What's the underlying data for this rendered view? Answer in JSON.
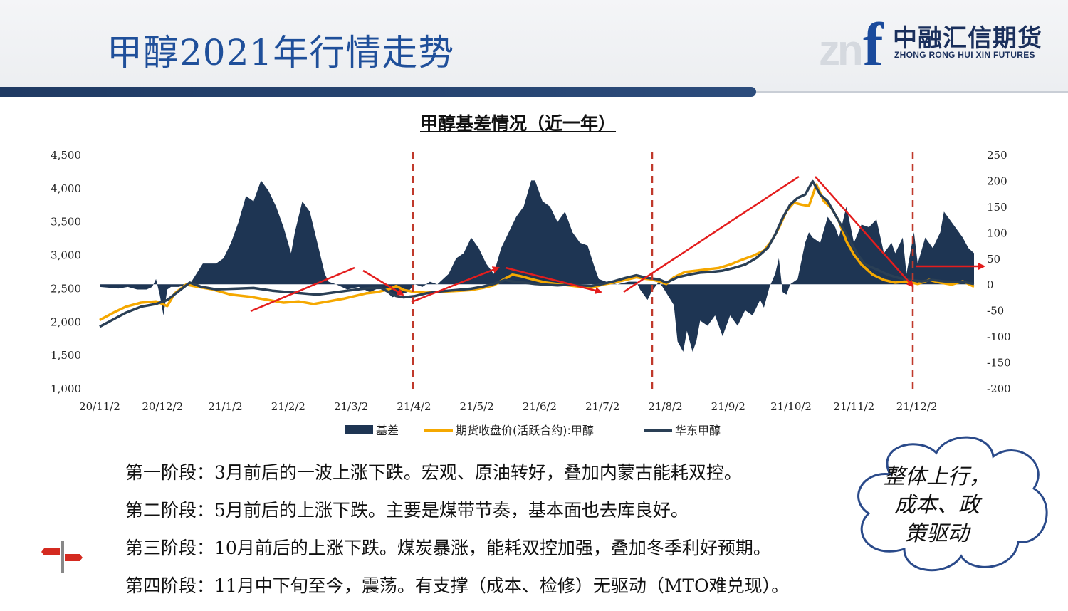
{
  "header": {
    "title": "甲醇2021年行情走势",
    "logo_cn": "中融汇信期货",
    "logo_en": "ZHONG RONG HUI XIN FUTURES",
    "logo_mark": "znf"
  },
  "chart_data": {
    "type": "area",
    "title": "甲醇基差情况（近一年）",
    "x_ticks": [
      "20/11/2",
      "20/12/2",
      "21/1/2",
      "21/2/2",
      "21/3/2",
      "21/4/2",
      "21/5/2",
      "21/6/2",
      "21/7/2",
      "21/8/2",
      "21/9/2",
      "21/10/2",
      "21/11/2",
      "21/12/2"
    ],
    "y_left": {
      "range": [
        1000,
        4500
      ],
      "ticks": [
        "1,000",
        "1,500",
        "2,000",
        "2,500",
        "3,000",
        "3,500",
        "4,000",
        "4,500"
      ]
    },
    "y_right": {
      "range": [
        -200,
        250
      ],
      "ticks": [
        "-200",
        "-150",
        "-100",
        "-50",
        "0",
        "50",
        "100",
        "150",
        "200",
        "250"
      ]
    },
    "legend": [
      {
        "name": "基差",
        "color": "#1e3553",
        "kind": "area"
      },
      {
        "name": "期货收盘价(活跃合约):甲醇",
        "color": "#f5a800",
        "kind": "line"
      },
      {
        "name": "华东甲醇",
        "color": "#2a3f55",
        "kind": "line"
      }
    ],
    "legend_position": "bottom",
    "series": [
      {
        "name": "基差",
        "axis": "right",
        "points": [
          [
            0,
            -5
          ],
          [
            10,
            -8
          ],
          [
            15,
            -5
          ],
          [
            20,
            -10
          ],
          [
            25,
            -10
          ],
          [
            28,
            -5
          ],
          [
            30,
            10
          ],
          [
            32,
            -20
          ],
          [
            34,
            -60
          ],
          [
            36,
            -10
          ],
          [
            38,
            -5
          ],
          [
            42,
            -5
          ],
          [
            48,
            0
          ],
          [
            55,
            40
          ],
          [
            62,
            40
          ],
          [
            66,
            50
          ],
          [
            70,
            80
          ],
          [
            74,
            120
          ],
          [
            78,
            170
          ],
          [
            82,
            160
          ],
          [
            86,
            200
          ],
          [
            90,
            180
          ],
          [
            94,
            150
          ],
          [
            98,
            110
          ],
          [
            102,
            60
          ],
          [
            104,
            100
          ],
          [
            108,
            160
          ],
          [
            112,
            140
          ],
          [
            116,
            80
          ],
          [
            120,
            20
          ],
          [
            122,
            5
          ],
          [
            126,
            0
          ],
          [
            132,
            -10
          ],
          [
            138,
            -5
          ],
          [
            144,
            -15
          ],
          [
            150,
            -5
          ],
          [
            156,
            -25
          ],
          [
            160,
            -20
          ],
          [
            164,
            -15
          ],
          [
            168,
            0
          ],
          [
            172,
            -5
          ],
          [
            176,
            5
          ],
          [
            180,
            0
          ],
          [
            186,
            20
          ],
          [
            190,
            50
          ],
          [
            194,
            60
          ],
          [
            198,
            90
          ],
          [
            202,
            70
          ],
          [
            206,
            40
          ],
          [
            210,
            20
          ],
          [
            214,
            70
          ],
          [
            218,
            100
          ],
          [
            222,
            130
          ],
          [
            226,
            150
          ],
          [
            228,
            175
          ],
          [
            230,
            200
          ],
          [
            232,
            200
          ],
          [
            236,
            160
          ],
          [
            240,
            150
          ],
          [
            244,
            120
          ],
          [
            248,
            140
          ],
          [
            252,
            100
          ],
          [
            256,
            80
          ],
          [
            260,
            75
          ],
          [
            264,
            30
          ],
          [
            266,
            10
          ],
          [
            270,
            5
          ],
          [
            276,
            0
          ],
          [
            282,
            5
          ],
          [
            286,
            5
          ],
          [
            288,
            -10
          ],
          [
            292,
            -30
          ],
          [
            294,
            -15
          ],
          [
            298,
            5
          ],
          [
            300,
            -5
          ],
          [
            306,
            -40
          ],
          [
            308,
            -110
          ],
          [
            311,
            -130
          ],
          [
            313,
            -90
          ],
          [
            316,
            -130
          ],
          [
            318,
            -110
          ],
          [
            320,
            -70
          ],
          [
            324,
            -80
          ],
          [
            328,
            -60
          ],
          [
            332,
            -100
          ],
          [
            336,
            -60
          ],
          [
            340,
            -80
          ],
          [
            344,
            -50
          ],
          [
            348,
            -60
          ],
          [
            352,
            -30
          ],
          [
            354,
            -45
          ],
          [
            357,
            -5
          ],
          [
            360,
            20
          ],
          [
            362,
            50
          ],
          [
            364,
            -15
          ],
          [
            366,
            -20
          ],
          [
            368,
            0
          ],
          [
            372,
            10
          ],
          [
            376,
            80
          ],
          [
            378,
            100
          ],
          [
            380,
            90
          ],
          [
            384,
            80
          ],
          [
            388,
            130
          ],
          [
            392,
            110
          ],
          [
            394,
            90
          ],
          [
            398,
            150
          ],
          [
            402,
            80
          ],
          [
            406,
            115
          ],
          [
            410,
            110
          ],
          [
            414,
            125
          ],
          [
            418,
            60
          ],
          [
            422,
            80
          ],
          [
            424,
            60
          ],
          [
            428,
            90
          ],
          [
            430,
            20
          ],
          [
            434,
            100
          ],
          [
            436,
            40
          ],
          [
            440,
            90
          ],
          [
            444,
            70
          ],
          [
            448,
            100
          ],
          [
            450,
            140
          ],
          [
            452,
            130
          ],
          [
            456,
            110
          ],
          [
            460,
            90
          ],
          [
            463,
            70
          ],
          [
            466,
            60
          ]
        ]
      },
      {
        "name": "期货收盘价(活跃合约):甲醇",
        "axis": "left",
        "points": [
          [
            0,
            2020
          ],
          [
            8,
            2140
          ],
          [
            14,
            2220
          ],
          [
            22,
            2280
          ],
          [
            30,
            2300
          ],
          [
            36,
            2230
          ],
          [
            40,
            2420
          ],
          [
            46,
            2550
          ],
          [
            52,
            2520
          ],
          [
            60,
            2480
          ],
          [
            70,
            2400
          ],
          [
            80,
            2370
          ],
          [
            90,
            2320
          ],
          [
            98,
            2280
          ],
          [
            106,
            2300
          ],
          [
            114,
            2260
          ],
          [
            122,
            2300
          ],
          [
            130,
            2340
          ],
          [
            136,
            2380
          ],
          [
            142,
            2420
          ],
          [
            148,
            2440
          ],
          [
            154,
            2480
          ],
          [
            158,
            2530
          ],
          [
            162,
            2470
          ],
          [
            168,
            2440
          ],
          [
            174,
            2430
          ],
          [
            180,
            2440
          ],
          [
            186,
            2450
          ],
          [
            192,
            2460
          ],
          [
            198,
            2470
          ],
          [
            204,
            2500
          ],
          [
            210,
            2540
          ],
          [
            216,
            2640
          ],
          [
            220,
            2700
          ],
          [
            224,
            2680
          ],
          [
            228,
            2650
          ],
          [
            232,
            2620
          ],
          [
            238,
            2580
          ],
          [
            244,
            2560
          ],
          [
            250,
            2540
          ],
          [
            256,
            2520
          ],
          [
            262,
            2500
          ],
          [
            268,
            2550
          ],
          [
            274,
            2580
          ],
          [
            280,
            2620
          ],
          [
            286,
            2660
          ],
          [
            290,
            2640
          ],
          [
            294,
            2630
          ],
          [
            298,
            2600
          ],
          [
            302,
            2560
          ],
          [
            306,
            2660
          ],
          [
            312,
            2740
          ],
          [
            318,
            2760
          ],
          [
            324,
            2780
          ],
          [
            330,
            2800
          ],
          [
            336,
            2850
          ],
          [
            342,
            2920
          ],
          [
            348,
            2980
          ],
          [
            354,
            3060
          ],
          [
            358,
            3200
          ],
          [
            362,
            3400
          ],
          [
            366,
            3650
          ],
          [
            370,
            3780
          ],
          [
            374,
            3750
          ],
          [
            378,
            3730
          ],
          [
            382,
            4050
          ],
          [
            386,
            3800
          ],
          [
            390,
            3700
          ],
          [
            394,
            3500
          ],
          [
            398,
            3200
          ],
          [
            402,
            3000
          ],
          [
            406,
            2850
          ],
          [
            412,
            2700
          ],
          [
            418,
            2620
          ],
          [
            424,
            2580
          ],
          [
            430,
            2600
          ],
          [
            436,
            2560
          ],
          [
            442,
            2620
          ],
          [
            448,
            2580
          ],
          [
            454,
            2550
          ],
          [
            460,
            2600
          ],
          [
            466,
            2520
          ]
        ]
      },
      {
        "name": "华东甲醇",
        "axis": "left",
        "points": [
          [
            0,
            1920
          ],
          [
            8,
            2040
          ],
          [
            14,
            2130
          ],
          [
            22,
            2220
          ],
          [
            30,
            2260
          ],
          [
            36,
            2320
          ],
          [
            42,
            2450
          ],
          [
            48,
            2580
          ],
          [
            54,
            2520
          ],
          [
            62,
            2480
          ],
          [
            72,
            2490
          ],
          [
            82,
            2500
          ],
          [
            92,
            2460
          ],
          [
            100,
            2440
          ],
          [
            108,
            2420
          ],
          [
            116,
            2400
          ],
          [
            124,
            2430
          ],
          [
            132,
            2460
          ],
          [
            138,
            2480
          ],
          [
            144,
            2500
          ],
          [
            150,
            2500
          ],
          [
            154,
            2440
          ],
          [
            158,
            2380
          ],
          [
            162,
            2360
          ],
          [
            168,
            2380
          ],
          [
            174,
            2420
          ],
          [
            182,
            2450
          ],
          [
            190,
            2470
          ],
          [
            198,
            2490
          ],
          [
            204,
            2520
          ],
          [
            210,
            2560
          ],
          [
            216,
            2620
          ],
          [
            220,
            2600
          ],
          [
            226,
            2580
          ],
          [
            232,
            2560
          ],
          [
            238,
            2550
          ],
          [
            244,
            2540
          ],
          [
            250,
            2550
          ],
          [
            256,
            2540
          ],
          [
            262,
            2530
          ],
          [
            268,
            2560
          ],
          [
            274,
            2600
          ],
          [
            280,
            2650
          ],
          [
            286,
            2690
          ],
          [
            292,
            2650
          ],
          [
            298,
            2630
          ],
          [
            302,
            2580
          ],
          [
            308,
            2660
          ],
          [
            314,
            2700
          ],
          [
            320,
            2730
          ],
          [
            326,
            2740
          ],
          [
            332,
            2760
          ],
          [
            338,
            2800
          ],
          [
            344,
            2850
          ],
          [
            350,
            2950
          ],
          [
            356,
            3100
          ],
          [
            360,
            3300
          ],
          [
            364,
            3550
          ],
          [
            368,
            3750
          ],
          [
            372,
            3850
          ],
          [
            376,
            3900
          ],
          [
            380,
            4100
          ],
          [
            384,
            3900
          ],
          [
            388,
            3800
          ],
          [
            392,
            3600
          ],
          [
            396,
            3400
          ],
          [
            400,
            3200
          ],
          [
            404,
            3000
          ],
          [
            408,
            2850
          ],
          [
            414,
            2780
          ],
          [
            420,
            2700
          ],
          [
            426,
            2650
          ],
          [
            432,
            2620
          ],
          [
            438,
            2600
          ],
          [
            444,
            2620
          ],
          [
            450,
            2600
          ],
          [
            456,
            2590
          ],
          [
            462,
            2580
          ],
          [
            466,
            2560
          ]
        ]
      }
    ],
    "stage_dividers_at": [
      "21/4/2",
      "21/8/2",
      "21/12/2"
    ]
  },
  "stages": [
    "第一阶段：3月前后的一波上涨下跌。宏观、原油转好，叠加内蒙古能耗双控。",
    "第二阶段：5月前后的上涨下跌。主要是煤带节奏，基本面也去库良好。",
    "第三阶段：10月前后的上涨下跌。煤炭暴涨，能耗双控加强，叠加冬季利好预期。",
    "第四阶段：11月中下旬至今，震荡。有支撑（成本、检修）无驱动（MTO难兑现）。"
  ],
  "callout": {
    "text_lines": [
      "整体上行，",
      "成本、政",
      "策驱动"
    ]
  },
  "colors": {
    "title": "#1f4f9a",
    "basis": "#1e3553",
    "futures": "#f5a800",
    "spot": "#2a3f55",
    "trend_arrow": "#e41d1d",
    "divider": "#c0392b"
  }
}
